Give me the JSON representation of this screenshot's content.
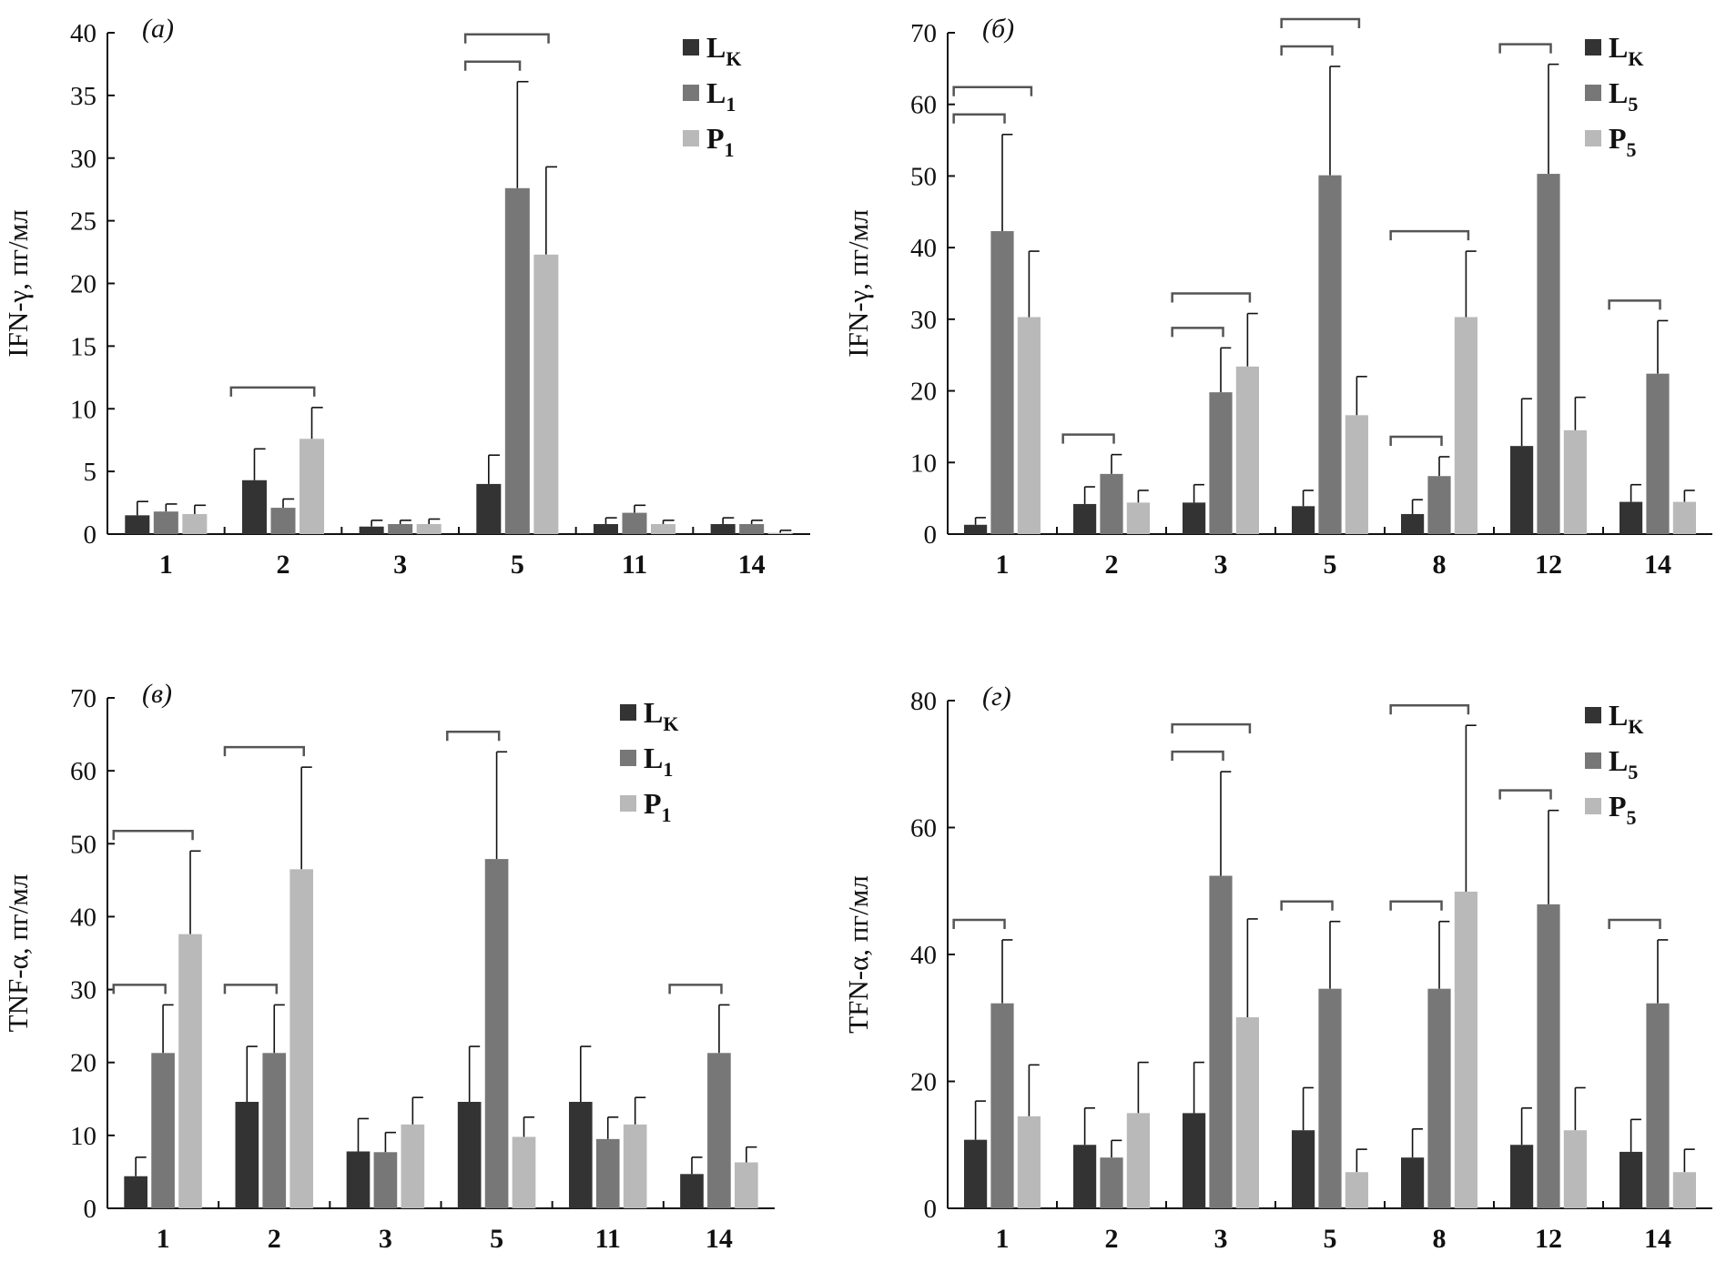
{
  "colors": {
    "LK": "#333333",
    "L": "#777777",
    "P": "#b9b9b9",
    "axis": "#111111"
  },
  "chart_data": [
    {
      "type": "bar",
      "panel_label": "(а)",
      "ylabel": "IFN-γ, пг/мл",
      "ylim": [
        0,
        40
      ],
      "yticks": [
        0,
        5,
        10,
        15,
        20,
        25,
        30,
        35,
        40
      ],
      "categories": [
        "1",
        "2",
        "3",
        "5",
        "11",
        "14"
      ],
      "legend_position": "top-right",
      "series": [
        {
          "label": "L",
          "sub": "K",
          "color_key": "LK",
          "values": [
            1.5,
            4.3,
            0.6,
            4.0,
            0.8,
            0.8
          ],
          "error_top": [
            2.6,
            6.8,
            1.1,
            6.3,
            1.3,
            1.3
          ]
        },
        {
          "label": "L",
          "sub": "1",
          "color_key": "L",
          "values": [
            1.8,
            2.1,
            0.8,
            27.6,
            1.7,
            0.8
          ],
          "error_top": [
            2.4,
            2.8,
            1.1,
            36.1,
            2.3,
            1.1
          ]
        },
        {
          "label": "P",
          "sub": "1",
          "color_key": "P",
          "values": [
            1.6,
            7.6,
            0.8,
            22.3,
            0.8,
            0.1
          ],
          "error_top": [
            2.3,
            10.1,
            1.2,
            29.3,
            1.1,
            0.3
          ]
        }
      ],
      "significance": [
        {
          "category": "2",
          "pairs": [
            [
              0,
              2
            ]
          ]
        },
        {
          "category": "5",
          "pairs": [
            [
              0,
              1
            ],
            [
              0,
              2
            ]
          ]
        }
      ]
    },
    {
      "type": "bar",
      "panel_label": "(б)",
      "ylabel": "IFN-γ, пг/мл",
      "ylim": [
        0,
        70
      ],
      "yticks": [
        0,
        10,
        20,
        30,
        40,
        50,
        60,
        70
      ],
      "categories": [
        "1",
        "2",
        "3",
        "5",
        "8",
        "12",
        "14"
      ],
      "legend_position": "top-right",
      "series": [
        {
          "label": "L",
          "sub": "K",
          "color_key": "LK",
          "values": [
            1.3,
            4.2,
            4.4,
            3.9,
            2.8,
            12.3,
            4.5
          ],
          "error_top": [
            2.3,
            6.6,
            6.9,
            6.1,
            4.8,
            18.9,
            6.9
          ]
        },
        {
          "label": "L",
          "sub": "5",
          "color_key": "L",
          "values": [
            42.3,
            8.4,
            19.8,
            50.1,
            8.1,
            50.3,
            22.4
          ],
          "error_top": [
            55.8,
            11.1,
            26.0,
            65.3,
            10.8,
            65.6,
            29.8
          ]
        },
        {
          "label": "P",
          "sub": "5",
          "color_key": "P",
          "values": [
            30.3,
            4.4,
            23.4,
            16.6,
            30.3,
            14.5,
            4.5
          ],
          "error_top": [
            39.5,
            6.1,
            30.8,
            22.0,
            39.5,
            19.1,
            6.1
          ]
        }
      ],
      "significance": [
        {
          "category": "1",
          "pairs": [
            [
              0,
              1
            ],
            [
              0,
              2
            ]
          ]
        },
        {
          "category": "2",
          "pairs": [
            [
              0,
              1
            ]
          ]
        },
        {
          "category": "3",
          "pairs": [
            [
              0,
              1
            ],
            [
              0,
              2
            ]
          ]
        },
        {
          "category": "5",
          "pairs": [
            [
              0,
              1
            ],
            [
              0,
              2
            ]
          ]
        },
        {
          "category": "8",
          "pairs": [
            [
              0,
              1
            ],
            [
              0,
              2
            ]
          ]
        },
        {
          "category": "12",
          "pairs": [
            [
              0,
              1
            ]
          ]
        },
        {
          "category": "14",
          "pairs": [
            [
              0,
              1
            ]
          ]
        }
      ]
    },
    {
      "type": "bar",
      "panel_label": "(в)",
      "ylabel": "TNF-α, пг/мл",
      "ylim": [
        0,
        70
      ],
      "yticks": [
        0,
        10,
        20,
        30,
        40,
        50,
        60,
        70
      ],
      "categories": [
        "1",
        "2",
        "3",
        "5",
        "11",
        "14"
      ],
      "legend_position": "top-right",
      "series": [
        {
          "label": "L",
          "sub": "K",
          "color_key": "LK",
          "values": [
            4.4,
            14.6,
            7.8,
            14.6,
            14.6,
            4.7
          ],
          "error_top": [
            7.0,
            22.2,
            12.3,
            22.2,
            22.2,
            7.0
          ]
        },
        {
          "label": "L",
          "sub": "1",
          "color_key": "L",
          "values": [
            21.3,
            21.3,
            7.7,
            47.9,
            9.5,
            21.3
          ],
          "error_top": [
            27.9,
            27.9,
            10.4,
            62.6,
            12.5,
            27.9
          ]
        },
        {
          "label": "P",
          "sub": "1",
          "color_key": "P",
          "values": [
            37.6,
            46.5,
            11.5,
            9.8,
            11.5,
            6.3
          ],
          "error_top": [
            49.0,
            60.5,
            15.2,
            12.5,
            15.2,
            8.4
          ]
        }
      ],
      "significance": [
        {
          "category": "1",
          "pairs": [
            [
              0,
              1
            ],
            [
              0,
              2
            ]
          ]
        },
        {
          "category": "2",
          "pairs": [
            [
              0,
              1
            ],
            [
              0,
              2
            ]
          ]
        },
        {
          "category": "5",
          "pairs": [
            [
              0,
              1
            ]
          ]
        },
        {
          "category": "14",
          "pairs": [
            [
              0,
              1
            ]
          ]
        }
      ]
    },
    {
      "type": "bar",
      "panel_label": "(г)",
      "ylabel": "TFN-α, пг/мл",
      "ylim": [
        0,
        80
      ],
      "yticks": [
        0,
        20,
        40,
        60,
        80
      ],
      "categories": [
        "1",
        "2",
        "3",
        "5",
        "8",
        "12",
        "14"
      ],
      "legend_position": "top-right",
      "series": [
        {
          "label": "L",
          "sub": "K",
          "color_key": "LK",
          "values": [
            10.8,
            10.0,
            15.0,
            12.3,
            8.0,
            10.0,
            8.9
          ],
          "error_top": [
            16.9,
            15.8,
            23.0,
            19.0,
            12.5,
            15.8,
            14.0
          ]
        },
        {
          "label": "L",
          "sub": "5",
          "color_key": "L",
          "values": [
            32.3,
            8.0,
            52.4,
            34.6,
            34.6,
            47.9,
            32.3
          ],
          "error_top": [
            42.3,
            10.7,
            68.8,
            45.2,
            45.2,
            62.7,
            42.3
          ]
        },
        {
          "label": "P",
          "sub": "5",
          "color_key": "P",
          "values": [
            14.5,
            15.0,
            30.1,
            5.7,
            49.9,
            12.3,
            5.7
          ],
          "error_top": [
            22.6,
            23.0,
            45.6,
            9.3,
            76.1,
            19.0,
            9.3
          ]
        }
      ],
      "significance": [
        {
          "category": "1",
          "pairs": [
            [
              0,
              1
            ]
          ]
        },
        {
          "category": "3",
          "pairs": [
            [
              0,
              1
            ],
            [
              0,
              2
            ]
          ]
        },
        {
          "category": "5",
          "pairs": [
            [
              0,
              1
            ]
          ]
        },
        {
          "category": "8",
          "pairs": [
            [
              0,
              1
            ],
            [
              0,
              2
            ]
          ]
        },
        {
          "category": "12",
          "pairs": [
            [
              0,
              1
            ]
          ]
        },
        {
          "category": "14",
          "pairs": [
            [
              0,
              1
            ]
          ]
        }
      ]
    }
  ]
}
